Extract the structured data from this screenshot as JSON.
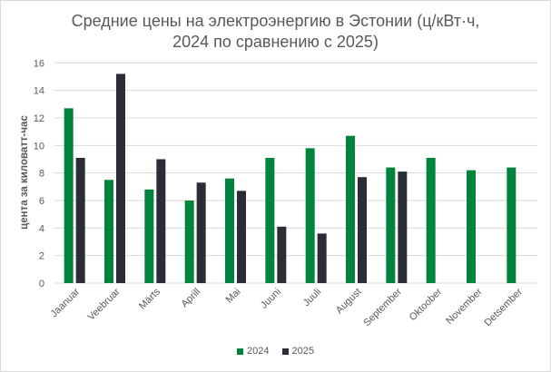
{
  "chart_data": {
    "type": "bar",
    "title": "Средние цены на электроэнергию в Эстонии (ц/кВт·ч, 2024 по сравнению с 2025)",
    "title_lines": [
      "Средние цены на электроэнергию в Эстонии (ц/кВт·ч,",
      "2024 по сравнению с 2025)"
    ],
    "xlabel": "",
    "ylabel": "цента за киловатт-час",
    "ylim": [
      0,
      16
    ],
    "yticks": [
      0,
      2,
      4,
      6,
      8,
      10,
      12,
      14,
      16
    ],
    "grid": true,
    "legend_position": "bottom",
    "categories": [
      "Jaanuar",
      "Veebruar",
      "Märts",
      "Aprill",
      "Mai",
      "Juuni",
      "Juuli",
      "August",
      "September",
      "Oktoober",
      "November",
      "Detsember"
    ],
    "series": [
      {
        "name": "2024",
        "color": "#00843D",
        "values": [
          12.7,
          7.5,
          6.8,
          6.0,
          7.6,
          9.1,
          9.8,
          10.7,
          8.4,
          9.1,
          8.2,
          8.4
        ]
      },
      {
        "name": "2025",
        "color": "#2B2D36",
        "values": [
          9.1,
          15.2,
          9.0,
          7.3,
          6.7,
          4.1,
          3.6,
          7.7,
          8.1,
          null,
          null,
          null
        ]
      }
    ]
  }
}
